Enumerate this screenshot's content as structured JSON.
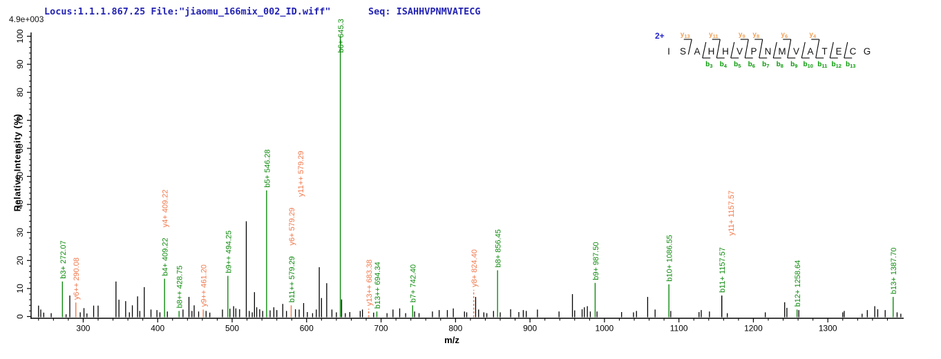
{
  "header": {
    "locus_file": "Locus:1.1.1.867.25 File:\"jiaomu_166mix_002_ID.wiff\"",
    "seq_label": "Seq: ISAHHVPNMVATECG",
    "base_peak_intensity": "4.9e+003"
  },
  "colors": {
    "b_ion_green": "#0e8b0e",
    "y_ion_orange": "#f0794c",
    "seq_b_green": "#0b9a0b",
    "seq_y_orange": "#f2a058",
    "header_blue": "#2323b4",
    "charge_blue": "#2424cc",
    "peak_black": "#000000",
    "axis_black": "#000000"
  },
  "peptide": {
    "charge_label": "2+",
    "residues": [
      "I",
      "S",
      "A",
      "H",
      "H",
      "V",
      "P",
      "N",
      "M",
      "V",
      "A",
      "T",
      "E",
      "C",
      "G"
    ],
    "y_ions": [
      {
        "sub": "13",
        "gap": 2
      },
      {
        "sub": "11",
        "gap": 4
      },
      {
        "sub": "9",
        "gap": 6
      },
      {
        "sub": "8",
        "gap": 7
      },
      {
        "sub": "6",
        "gap": 9
      },
      {
        "sub": "4",
        "gap": 11
      }
    ],
    "b_ions": [
      {
        "sub": "3",
        "gap": 3
      },
      {
        "sub": "4",
        "gap": 4
      },
      {
        "sub": "5",
        "gap": 5
      },
      {
        "sub": "6",
        "gap": 6
      },
      {
        "sub": "7",
        "gap": 7
      },
      {
        "sub": "8",
        "gap": 8
      },
      {
        "sub": "9",
        "gap": 9
      },
      {
        "sub": "10",
        "gap": 10
      },
      {
        "sub": "11",
        "gap": 11
      },
      {
        "sub": "12",
        "gap": 12
      },
      {
        "sub": "13",
        "gap": 13
      }
    ]
  },
  "chart_data": {
    "type": "bar",
    "variant": "centroided MS/MS mass spectrum (stick plot)",
    "xlabel": "m/z",
    "ylabel": "Relative  Intensity  (%)",
    "xlim": [
      230,
      1400
    ],
    "ylim": [
      0,
      100
    ],
    "x_major_ticks": [
      300,
      400,
      500,
      600,
      700,
      800,
      900,
      1000,
      1100,
      1200,
      1300
    ],
    "x_minor_step": 20,
    "y_major_ticks": [
      0,
      10,
      20,
      30,
      40,
      50,
      60,
      70,
      80,
      90,
      100
    ],
    "y_minor_step": 2,
    "grid": false,
    "legend": false,
    "annotated_peaks": [
      {
        "mz": 272.07,
        "intensity": 12.5,
        "line": "b",
        "dashed": false,
        "labels": [
          {
            "text": "b3+ 272.07",
            "color": "b",
            "dx": 0
          }
        ]
      },
      {
        "mz": 290.08,
        "intensity": 5.0,
        "line": "y",
        "dashed": false,
        "labels": [
          {
            "text": "y6++ 290.08",
            "color": "y",
            "dx": 0
          }
        ]
      },
      {
        "mz": 409.22,
        "intensity": 13.5,
        "line": "b",
        "dashed": false,
        "labels": [
          {
            "text": "b4+ 409.22",
            "color": "b",
            "dx": 0
          },
          {
            "text": "y4+ 409.22",
            "color": "y",
            "dx": 0
          }
        ]
      },
      {
        "mz": 428.75,
        "intensity": 2.0,
        "line": "b",
        "dashed": false,
        "labels": [
          {
            "text": "b8++ 428.75",
            "color": "b",
            "dx": 0
          }
        ]
      },
      {
        "mz": 461.2,
        "intensity": 2.5,
        "line": "y",
        "dashed": false,
        "labels": [
          {
            "text": "y9++ 461.20",
            "color": "y",
            "dx": 0
          }
        ]
      },
      {
        "mz": 494.25,
        "intensity": 14.5,
        "line": "b",
        "dashed": false,
        "labels": [
          {
            "text": "b9++ 494.25",
            "color": "b",
            "dx": 0
          }
        ]
      },
      {
        "mz": 546.28,
        "intensity": 45.0,
        "line": "b",
        "dashed": false,
        "labels": [
          {
            "text": "b5+ 546.28",
            "color": "b",
            "dx": 0
          }
        ]
      },
      {
        "mz": 579.29,
        "intensity": 4.0,
        "line": "y",
        "dashed": false,
        "labels": [
          {
            "text": "b11++ 579.29",
            "color": "b",
            "dx": 0
          },
          {
            "text": "y6+ 579.29",
            "color": "y",
            "dx": 0
          },
          {
            "text": "y11++ 579.29",
            "color": "y",
            "dx": 13
          }
        ]
      },
      {
        "mz": 645.3,
        "intensity": 100.0,
        "line": "b",
        "dashed": false,
        "labels": [
          {
            "text": "b6+ 645.3",
            "color": "b",
            "dx": 0
          }
        ]
      },
      {
        "mz": 683.38,
        "intensity": 2.8,
        "line": "y",
        "dashed": true,
        "labels": [
          {
            "text": "y13++ 683.38",
            "color": "y",
            "dx": 0
          }
        ]
      },
      {
        "mz": 694.34,
        "intensity": 1.8,
        "line": "b",
        "dashed": false,
        "labels": [
          {
            "text": "b13++ 694.34",
            "color": "b",
            "dx": 0
          }
        ]
      },
      {
        "mz": 742.4,
        "intensity": 4.0,
        "line": "b",
        "dashed": false,
        "labels": [
          {
            "text": "b7+ 742.40",
            "color": "b",
            "dx": 0
          }
        ]
      },
      {
        "mz": 824.4,
        "intensity": 9.5,
        "line": "y",
        "dashed": true,
        "labels": [
          {
            "text": "y8+ 824.40",
            "color": "y",
            "dx": 0
          }
        ]
      },
      {
        "mz": 856.45,
        "intensity": 16.5,
        "line": "b",
        "dashed": false,
        "labels": [
          {
            "text": "b8+ 856.45",
            "color": "b",
            "dx": 0
          }
        ]
      },
      {
        "mz": 987.5,
        "intensity": 12.0,
        "line": "b",
        "dashed": false,
        "labels": [
          {
            "text": "b9+ 987.50",
            "color": "b",
            "dx": 0
          }
        ]
      },
      {
        "mz": 1086.55,
        "intensity": 11.5,
        "line": "b",
        "dashed": false,
        "labels": [
          {
            "text": "b10+ 1086.55",
            "color": "b",
            "dx": 0
          }
        ]
      },
      {
        "mz": 1157.57,
        "intensity": 7.5,
        "line": "k",
        "dashed": false,
        "labels": [
          {
            "text": "b11+ 1157.57",
            "color": "b",
            "dx": 0
          },
          {
            "text": "y11+ 1157.57",
            "color": "y",
            "dx": 13
          }
        ]
      },
      {
        "mz": 1258.64,
        "intensity": 2.5,
        "line": "b",
        "dashed": false,
        "labels": [
          {
            "text": "b12+ 1258.64",
            "color": "b",
            "dx": 0
          }
        ]
      },
      {
        "mz": 1387.7,
        "intensity": 7.0,
        "line": "b",
        "dashed": false,
        "labels": [
          {
            "text": "b13+ 1387.70",
            "color": "b",
            "dx": 0
          }
        ]
      }
    ],
    "unlabeled_peaks": [
      [
        240,
        3.9
      ],
      [
        243,
        2.5
      ],
      [
        247,
        1.4
      ],
      [
        257,
        1.2
      ],
      [
        277,
        0.8
      ],
      [
        282,
        7.5
      ],
      [
        296,
        1.5
      ],
      [
        301,
        3.0
      ],
      [
        305,
        1.1
      ],
      [
        314,
        3.9
      ],
      [
        320,
        3.9
      ],
      [
        344,
        12.5
      ],
      [
        348,
        6.0
      ],
      [
        357,
        5.5
      ],
      [
        362,
        1.5
      ],
      [
        366,
        4.0
      ],
      [
        373,
        7.2
      ],
      [
        376,
        2.0
      ],
      [
        382,
        10.5
      ],
      [
        391,
        2.5
      ],
      [
        399,
        2.3
      ],
      [
        403,
        1.5
      ],
      [
        413,
        1.8
      ],
      [
        434,
        2.5
      ],
      [
        442,
        7.0
      ],
      [
        446,
        2.0
      ],
      [
        449,
        4.0
      ],
      [
        455,
        1.8
      ],
      [
        465,
        2.0
      ],
      [
        470,
        1.4
      ],
      [
        487,
        2.5
      ],
      [
        497,
        2.8
      ],
      [
        502,
        3.7
      ],
      [
        505,
        2.9
      ],
      [
        510,
        2.6
      ],
      [
        519,
        34.0
      ],
      [
        523,
        2.0
      ],
      [
        527,
        1.5
      ],
      [
        530,
        8.7
      ],
      [
        533,
        3.3
      ],
      [
        537,
        2.6
      ],
      [
        541,
        2.0
      ],
      [
        551,
        2.2
      ],
      [
        556,
        3.3
      ],
      [
        560,
        2.3
      ],
      [
        568,
        4.5
      ],
      [
        573,
        2.0
      ],
      [
        585,
        2.6
      ],
      [
        590,
        2.5
      ],
      [
        596,
        4.8
      ],
      [
        601,
        1.6
      ],
      [
        608,
        1.2
      ],
      [
        613,
        2.5
      ],
      [
        617,
        17.6
      ],
      [
        620,
        6.6
      ],
      [
        627,
        11.9
      ],
      [
        634,
        2.5
      ],
      [
        640,
        1.5
      ],
      [
        647,
        6.1
      ],
      [
        652,
        1.2
      ],
      [
        658,
        1.6
      ],
      [
        672,
        2.0
      ],
      [
        675,
        2.5
      ],
      [
        690,
        1.4
      ],
      [
        708,
        1.2
      ],
      [
        716,
        2.5
      ],
      [
        725,
        2.9
      ],
      [
        733,
        1.2
      ],
      [
        745,
        1.8
      ],
      [
        751,
        1.2
      ],
      [
        769,
        1.8
      ],
      [
        778,
        2.3
      ],
      [
        789,
        2.3
      ],
      [
        797,
        2.9
      ],
      [
        812,
        1.8
      ],
      [
        815,
        1.5
      ],
      [
        827,
        7.0
      ],
      [
        831,
        2.5
      ],
      [
        838,
        1.5
      ],
      [
        842,
        1.2
      ],
      [
        851,
        2.0
      ],
      [
        860,
        1.5
      ],
      [
        874,
        2.6
      ],
      [
        885,
        1.6
      ],
      [
        891,
        2.3
      ],
      [
        895,
        2.0
      ],
      [
        910,
        2.5
      ],
      [
        939,
        1.8
      ],
      [
        957,
        8.0
      ],
      [
        960,
        2.2
      ],
      [
        970,
        2.6
      ],
      [
        973,
        3.3
      ],
      [
        977,
        3.7
      ],
      [
        981,
        1.8
      ],
      [
        990,
        1.8
      ],
      [
        1023,
        1.6
      ],
      [
        1039,
        1.5
      ],
      [
        1043,
        2.0
      ],
      [
        1058,
        7.0
      ],
      [
        1068,
        2.5
      ],
      [
        1089,
        2.0
      ],
      [
        1127,
        1.6
      ],
      [
        1130,
        2.3
      ],
      [
        1141,
        1.8
      ],
      [
        1165,
        1.2
      ],
      [
        1216,
        1.5
      ],
      [
        1242,
        5.1
      ],
      [
        1245,
        3.1
      ],
      [
        1261,
        2.3
      ],
      [
        1320,
        1.5
      ],
      [
        1322,
        2.0
      ],
      [
        1346,
        1.0
      ],
      [
        1353,
        2.3
      ],
      [
        1363,
        3.7
      ],
      [
        1367,
        2.6
      ],
      [
        1377,
        2.3
      ],
      [
        1393,
        1.5
      ],
      [
        1398,
        1.0
      ]
    ]
  }
}
